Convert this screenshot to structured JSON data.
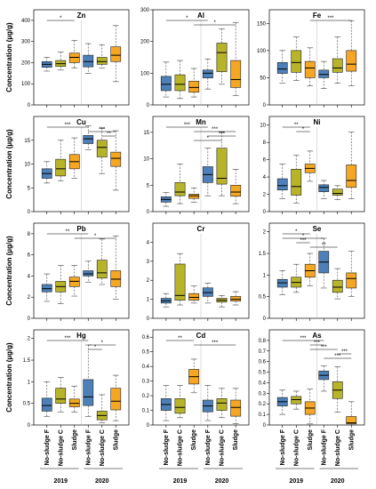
{
  "chart_data": {
    "type": "boxplot",
    "ylabel": "Concentration (µg/g)",
    "categories": [
      "No-sludge F",
      "No-sludge C",
      "Sludge",
      "No-sludge F",
      "No-sludge C",
      "Sludge"
    ],
    "groups": [
      "2019",
      "2020"
    ],
    "colors": [
      "#4d80b8",
      "#b8b42a",
      "#f5a623"
    ],
    "panels": [
      {
        "title": "Zn",
        "ylim": [
          0,
          450
        ],
        "ticks": [
          0,
          100,
          200,
          300,
          400
        ],
        "boxes": [
          [
            160,
            178,
            192,
            205,
            225
          ],
          [
            165,
            182,
            195,
            210,
            250
          ],
          [
            175,
            200,
            225,
            245,
            305
          ],
          [
            150,
            180,
            205,
            235,
            290
          ],
          [
            175,
            192,
            205,
            225,
            285
          ],
          [
            110,
            205,
            235,
            275,
            375
          ]
        ],
        "sig": [
          {
            "from": 0,
            "to": 2,
            "label": "*"
          }
        ]
      },
      {
        "title": "Al",
        "ylim": [
          0,
          300
        ],
        "ticks": [
          0,
          100,
          200,
          300
        ],
        "boxes": [
          [
            25,
            45,
            65,
            90,
            135
          ],
          [
            20,
            45,
            65,
            95,
            140
          ],
          [
            25,
            40,
            55,
            75,
            115
          ],
          [
            50,
            85,
            100,
            110,
            145
          ],
          [
            65,
            105,
            165,
            195,
            240
          ],
          [
            30,
            55,
            80,
            140,
            260
          ]
        ],
        "sig": [
          {
            "from": 0,
            "to": 3,
            "label": "*"
          },
          {
            "from": 2,
            "to": 5,
            "label": "*"
          }
        ]
      },
      {
        "title": "Fe",
        "ylim": [
          0,
          175
        ],
        "ticks": [
          0,
          50,
          100,
          150
        ],
        "boxes": [
          [
            40,
            58,
            66,
            78,
            100
          ],
          [
            45,
            60,
            78,
            100,
            125
          ],
          [
            35,
            50,
            68,
            80,
            105
          ],
          [
            30,
            50,
            56,
            64,
            80
          ],
          [
            40,
            60,
            68,
            85,
            125
          ],
          [
            35,
            62,
            75,
            100,
            155
          ]
        ],
        "sig": [
          {
            "from": 2,
            "to": 5,
            "label": "***"
          }
        ]
      },
      {
        "title": "Cu",
        "ylim": [
          0,
          20
        ],
        "ticks": [
          0,
          5,
          10,
          15
        ],
        "boxes": [
          [
            6,
            7,
            8,
            9,
            10.5
          ],
          [
            6.5,
            7.5,
            9,
            11,
            15
          ],
          [
            7,
            9,
            10.5,
            12,
            15.5
          ],
          [
            13,
            14.3,
            15.3,
            16,
            18
          ],
          [
            8,
            11.5,
            13.5,
            15,
            17.5
          ],
          [
            4.5,
            9.5,
            11.2,
            12.5,
            17
          ]
        ],
        "sig": [
          {
            "from": 0,
            "to": 3,
            "label": "***"
          },
          {
            "from": 3,
            "to": 5,
            "label": "***"
          },
          {
            "from": 4,
            "to": 5,
            "label": "**"
          }
        ]
      },
      {
        "title": "Mn",
        "ylim": [
          0,
          18
        ],
        "ticks": [
          0,
          5,
          10,
          15
        ],
        "boxes": [
          [
            1,
            1.8,
            2.3,
            2.8,
            3.6
          ],
          [
            1.5,
            3,
            3.7,
            5.5,
            9
          ],
          [
            1.8,
            2.5,
            3,
            3.3,
            4.5
          ],
          [
            3,
            5.5,
            7,
            8.5,
            12
          ],
          [
            3,
            5.2,
            6.3,
            12,
            15
          ],
          [
            1.5,
            2.9,
            3.7,
            5,
            8
          ]
        ],
        "sig": [
          {
            "from": 0,
            "to": 3,
            "label": "***"
          },
          {
            "from": 2,
            "to": 5,
            "label": "***"
          },
          {
            "from": 3,
            "to": 5,
            "label": "***"
          },
          {
            "from": 2,
            "to": 4,
            "label": "*"
          }
        ]
      },
      {
        "title": "Ni",
        "ylim": [
          0,
          11
        ],
        "ticks": [
          0,
          2,
          4,
          6,
          8,
          10
        ],
        "boxes": [
          [
            1.5,
            2.5,
            3,
            3.8,
            5.5
          ],
          [
            1,
            1.9,
            2.9,
            4.9,
            6.5
          ],
          [
            3.5,
            4.5,
            5,
            5.5,
            7
          ],
          [
            1.5,
            2.3,
            2.8,
            3.1,
            3.6
          ],
          [
            1.4,
            1.9,
            2.1,
            2.6,
            3
          ],
          [
            1.5,
            2.8,
            3.6,
            5.4,
            9.2
          ]
        ],
        "sig": [
          {
            "from": 0,
            "to": 2,
            "label": "**"
          },
          {
            "from": 1,
            "to": 2,
            "label": "*"
          }
        ]
      },
      {
        "title": "Pb",
        "ylim": [
          0,
          9
        ],
        "ticks": [
          0,
          2,
          4,
          6,
          8
        ],
        "boxes": [
          [
            1.6,
            2.5,
            2.8,
            3.2,
            4.2
          ],
          [
            1.4,
            2.5,
            3,
            3.5,
            5
          ],
          [
            2.1,
            3,
            3.5,
            3.9,
            5
          ],
          [
            3.4,
            4,
            4.2,
            4.5,
            5.4
          ],
          [
            3.2,
            3.8,
            4.3,
            5.5,
            7.5
          ],
          [
            1.8,
            3,
            3.7,
            4.5,
            7.8
          ]
        ],
        "sig": [
          {
            "from": 0,
            "to": 3,
            "label": "**"
          },
          {
            "from": 2,
            "to": 5,
            "label": "*"
          }
        ]
      },
      {
        "title": "Cr",
        "ylim": [
          0,
          5
        ],
        "ticks": [
          0,
          1,
          2,
          3,
          4
        ],
        "boxes": [
          [
            0.6,
            0.8,
            0.92,
            1.05,
            1.3
          ],
          [
            0.7,
            0.95,
            1.2,
            2.85,
            3.4
          ],
          [
            0.8,
            0.95,
            1.1,
            1.3,
            1.7
          ],
          [
            0.8,
            1.15,
            1.35,
            1.6,
            1.85
          ],
          [
            0.6,
            0.85,
            0.95,
            1.05,
            1.2
          ],
          [
            0.7,
            0.9,
            1,
            1.15,
            1.4
          ]
        ],
        "sig": []
      },
      {
        "title": "Se",
        "ylim": [
          0,
          2.2
        ],
        "ticks": [
          0,
          0.5,
          1,
          1.5,
          2
        ],
        "boxes": [
          [
            0.55,
            0.72,
            0.82,
            0.9,
            1.1
          ],
          [
            0.6,
            0.72,
            0.83,
            0.95,
            1.25
          ],
          [
            0.75,
            0.95,
            1.1,
            1.25,
            1.5
          ],
          [
            0.7,
            1.05,
            1.3,
            1.55,
            1.85
          ],
          [
            0.45,
            0.6,
            0.72,
            0.88,
            1.15
          ],
          [
            0.5,
            0.7,
            0.92,
            1.05,
            1.55
          ]
        ],
        "sig": [
          {
            "from": 0,
            "to": 2,
            "label": "*"
          },
          {
            "from": 0,
            "to": 3,
            "label": "*"
          },
          {
            "from": 1,
            "to": 2,
            "label": "***"
          },
          {
            "from": 2,
            "to": 4,
            "label": "**"
          }
        ]
      },
      {
        "title": "Hg",
        "ylim": [
          0,
          2.2
        ],
        "ticks": [
          0,
          0.5,
          1,
          1.5,
          2
        ],
        "boxes": [
          [
            0.2,
            0.32,
            0.45,
            0.62,
            1
          ],
          [
            0.3,
            0.5,
            0.6,
            0.85,
            1.1
          ],
          [
            0.3,
            0.42,
            0.5,
            0.6,
            0.9
          ],
          [
            0.2,
            0.45,
            0.65,
            1.05,
            1.85
          ],
          [
            0.05,
            0.12,
            0.22,
            0.32,
            0.7
          ],
          [
            0.1,
            0.35,
            0.55,
            0.85,
            1.15
          ]
        ],
        "sig": [
          {
            "from": 0,
            "to": 3,
            "label": "***"
          },
          {
            "from": 3,
            "to": 5,
            "label": "*"
          },
          {
            "from": 3,
            "to": 4,
            "label": "*"
          }
        ]
      },
      {
        "title": "Cd",
        "ylim": [
          0,
          0.65
        ],
        "ticks": [
          0,
          0.1,
          0.2,
          0.3,
          0.4,
          0.5,
          0.6
        ],
        "boxes": [
          [
            0.03,
            0.1,
            0.14,
            0.18,
            0.27
          ],
          [
            0.05,
            0.08,
            0.12,
            0.18,
            0.27
          ],
          [
            0.22,
            0.28,
            0.33,
            0.38,
            0.45
          ],
          [
            0.03,
            0.09,
            0.13,
            0.17,
            0.27
          ],
          [
            0.05,
            0.1,
            0.15,
            0.18,
            0.25
          ],
          [
            0.01,
            0.06,
            0.12,
            0.17,
            0.25
          ]
        ],
        "sig": [
          {
            "from": 0,
            "to": 2,
            "label": "**"
          },
          {
            "from": 2,
            "to": 5,
            "label": "***"
          }
        ]
      },
      {
        "title": "As",
        "ylim": [
          0,
          0.9
        ],
        "ticks": [
          0,
          0.1,
          0.2,
          0.3,
          0.4,
          0.5,
          0.6,
          0.7,
          0.8
        ],
        "boxes": [
          [
            0.1,
            0.18,
            0.22,
            0.26,
            0.33
          ],
          [
            0.15,
            0.2,
            0.24,
            0.27,
            0.32
          ],
          [
            0.01,
            0.1,
            0.16,
            0.22,
            0.34
          ],
          [
            0.32,
            0.43,
            0.47,
            0.51,
            0.56
          ],
          [
            0.12,
            0.25,
            0.33,
            0.41,
            0.55
          ],
          [
            0,
            0.01,
            0.02,
            0.08,
            0.22
          ]
        ],
        "sig": [
          {
            "from": 0,
            "to": 3,
            "label": "***"
          },
          {
            "from": 2,
            "to": 3,
            "label": "***"
          },
          {
            "from": 2,
            "to": 4,
            "label": "***"
          },
          {
            "from": 4,
            "to": 5,
            "label": "***"
          },
          {
            "from": 3,
            "to": 5,
            "label": "***"
          }
        ]
      }
    ]
  }
}
